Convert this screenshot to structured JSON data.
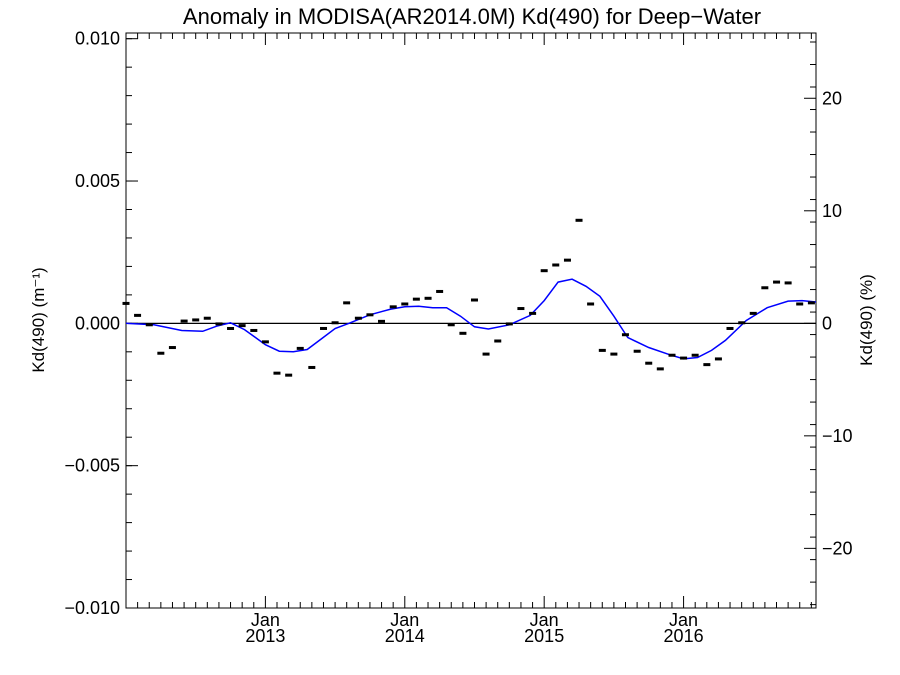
{
  "chart_data": {
    "type": "scatter",
    "title": "Anomaly in MODISA(AR2014.0M) Kd(490) for Deep−Water",
    "ylabel_left": "Kd(490) (m⁻¹)",
    "ylabel_right": "Kd(490) (%)",
    "xlabel": "",
    "xlim": [
      2012.0,
      2016.95
    ],
    "ylim": [
      -0.01,
      0.0102
    ],
    "ylim_right": [
      -25.3,
      25.8
    ],
    "grid": false,
    "left_ticks": [
      {
        "value": 0.01,
        "label": "0.010"
      },
      {
        "value": 0.005,
        "label": "0.005"
      },
      {
        "value": 0.0,
        "label": "0.000"
      },
      {
        "value": -0.005,
        "label": "−0.005"
      },
      {
        "value": -0.01,
        "label": "−0.010"
      }
    ],
    "right_ticks": [
      {
        "value": 20,
        "label": "20"
      },
      {
        "value": 10,
        "label": "10"
      },
      {
        "value": 0,
        "label": "0"
      },
      {
        "value": -10,
        "label": "−10"
      },
      {
        "value": -20,
        "label": "−20"
      }
    ],
    "x_ticks": [
      {
        "value": 2013.0,
        "month": "Jan",
        "year": "2013"
      },
      {
        "value": 2014.0,
        "month": "Jan",
        "year": "2014"
      },
      {
        "value": 2015.0,
        "month": "Jan",
        "year": "2015"
      },
      {
        "value": 2016.0,
        "month": "Jan",
        "year": "2016"
      }
    ],
    "series": [
      {
        "type": "monthly_anomaly",
        "color": "#000000",
        "x": [
          2012.0,
          2012.083,
          2012.167,
          2012.25,
          2012.333,
          2012.417,
          2012.5,
          2012.583,
          2012.667,
          2012.75,
          2012.833,
          2012.917,
          2013.0,
          2013.083,
          2013.167,
          2013.25,
          2013.333,
          2013.417,
          2013.5,
          2013.583,
          2013.667,
          2013.75,
          2013.833,
          2013.917,
          2014.0,
          2014.083,
          2014.167,
          2014.25,
          2014.333,
          2014.417,
          2014.5,
          2014.583,
          2014.667,
          2014.75,
          2014.833,
          2014.917,
          2015.0,
          2015.083,
          2015.167,
          2015.25,
          2015.333,
          2015.417,
          2015.5,
          2015.583,
          2015.667,
          2015.75,
          2015.833,
          2015.917,
          2016.0,
          2016.083,
          2016.167,
          2016.25,
          2016.333,
          2016.417,
          2016.5,
          2016.583,
          2016.667,
          2016.75,
          2016.833,
          2016.917
        ],
        "y": [
          0.0007,
          0.00028,
          -5e-05,
          -0.00105,
          -0.00085,
          8e-05,
          0.00012,
          0.00018,
          -2e-05,
          -0.00018,
          -8e-05,
          -0.00025,
          -0.00065,
          -0.00175,
          -0.00182,
          -0.00088,
          -0.00155,
          -0.00018,
          2e-05,
          0.00072,
          0.00018,
          0.0003,
          7e-05,
          0.00058,
          0.00068,
          0.00085,
          0.00088,
          0.00112,
          -5e-05,
          -0.00035,
          0.00082,
          -0.00108,
          -0.00062,
          -2e-05,
          0.00052,
          0.00035,
          0.00185,
          0.00205,
          0.00222,
          0.00362,
          0.00068,
          -0.00095,
          -0.00108,
          -0.0004,
          -0.00098,
          -0.0014,
          -0.0016,
          -0.00112,
          -0.00122,
          -0.00112,
          -0.00145,
          -0.00125,
          -0.00018,
          2e-05,
          0.00035,
          0.00125,
          0.00145,
          0.00142,
          0.00068,
          0.00072
        ]
      },
      {
        "type": "running_mean",
        "color": "#0000ff",
        "x": [
          2012.0,
          2012.2,
          2012.4,
          2012.55,
          2012.65,
          2012.75,
          2012.85,
          2013.0,
          2013.1,
          2013.2,
          2013.3,
          2013.4,
          2013.5,
          2013.6,
          2013.75,
          2013.9,
          2014.0,
          2014.1,
          2014.2,
          2014.3,
          2014.4,
          2014.5,
          2014.6,
          2014.75,
          2014.9,
          2015.0,
          2015.1,
          2015.2,
          2015.3,
          2015.4,
          2015.5,
          2015.6,
          2015.75,
          2015.9,
          2016.0,
          2016.1,
          2016.2,
          2016.3,
          2016.45,
          2016.6,
          2016.75,
          2016.85,
          2016.95
        ],
        "y": [
          0.0,
          -5e-05,
          -0.00025,
          -0.00028,
          -0.0001,
          2e-05,
          -0.00022,
          -0.00075,
          -0.00098,
          -0.001,
          -0.00092,
          -0.00055,
          -0.00018,
          0.0,
          0.0003,
          0.0005,
          0.00058,
          0.0006,
          0.00055,
          0.00055,
          0.00025,
          -0.00012,
          -0.0002,
          -5e-05,
          0.00028,
          0.0008,
          0.00145,
          0.00155,
          0.0013,
          0.00095,
          0.00025,
          -0.0005,
          -0.00085,
          -0.0011,
          -0.00125,
          -0.0012,
          -0.00095,
          -0.0006,
          0.0001,
          0.00055,
          0.00078,
          0.0008,
          0.00075
        ]
      }
    ]
  }
}
